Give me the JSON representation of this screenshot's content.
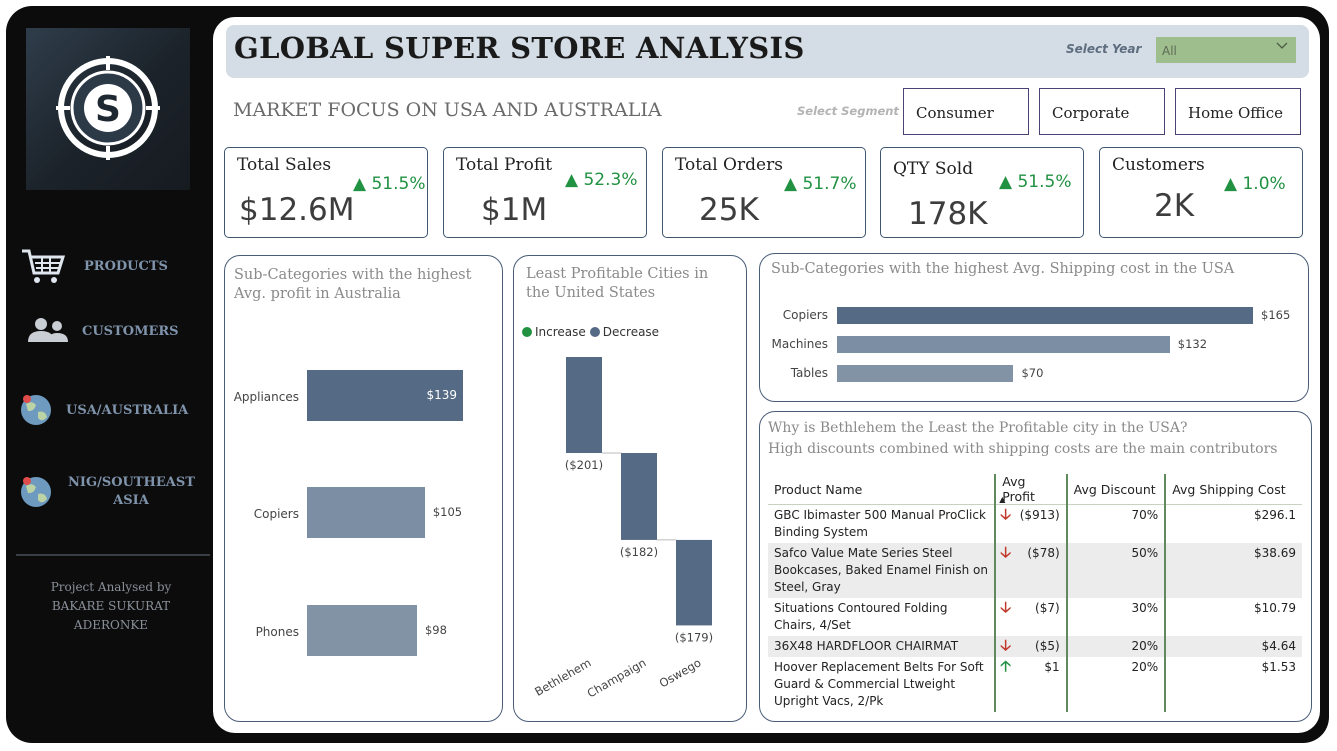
{
  "sidebar": {
    "nav": [
      {
        "label": "PRODUCTS",
        "icon": "cart-icon"
      },
      {
        "label": "CUSTOMERS",
        "icon": "people-icon"
      },
      {
        "label": "USA/AUSTRALIA",
        "icon": "globe-icon"
      },
      {
        "label": "NIG/SOUTHEAST ASIA",
        "icon": "globe-icon"
      }
    ],
    "credit": {
      "line1": "Project Analysed by",
      "line2": "BAKARE SUKURAT",
      "line3": "ADERONKE"
    }
  },
  "header": {
    "title": "GLOBAL SUPER STORE ANALYSIS",
    "year_label": "Select Year",
    "year_value": "All"
  },
  "subtitle": "MARKET FOCUS ON USA AND AUSTRALIA",
  "segment": {
    "label": "Select Segment",
    "options": [
      "Consumer",
      "Corporate",
      "Home Office"
    ]
  },
  "kpis": [
    {
      "title": "Total Sales",
      "value": "$12.6M",
      "delta": "51.5%"
    },
    {
      "title": "Total Profit",
      "value": "$1M",
      "delta": "52.3%"
    },
    {
      "title": "Total Orders",
      "value": "25K",
      "delta": "51.7%"
    },
    {
      "title": "QTY Sold",
      "value": "178K",
      "delta": "51.5%"
    },
    {
      "title": "Customers",
      "value": "2K",
      "delta": "1.0%"
    }
  ],
  "colors": {
    "positive": "#219142",
    "negative": "#c0392b",
    "bar": "#556a84",
    "bar_light": "#7b8ea3",
    "accent": "#9ebe8d"
  },
  "chart_data": [
    {
      "type": "bar",
      "orientation": "horizontal",
      "title": "Sub-Categories with the highest Avg. profit in Australia",
      "categories": [
        "Appliances",
        "Copiers",
        "Phones"
      ],
      "values": [
        139,
        105,
        98
      ],
      "value_labels": [
        "$139",
        "$105",
        "$98"
      ]
    },
    {
      "type": "waterfall",
      "title": "Least Profitable Cities in the United States",
      "legend": [
        "Increase",
        "Decrease"
      ],
      "categories": [
        "Bethlehem",
        "Champaign",
        "Oswego"
      ],
      "values": [
        -201,
        -182,
        -179
      ],
      "value_labels": [
        "($201)",
        "($182)",
        "($179)"
      ]
    },
    {
      "type": "bar",
      "orientation": "horizontal",
      "title": "Sub-Categories with the highest  Avg. Shipping cost in the USA",
      "categories": [
        "Copiers",
        "Machines",
        "Tables"
      ],
      "values": [
        165,
        132,
        70
      ],
      "value_labels": [
        "$165",
        "$132",
        "$70"
      ]
    }
  ],
  "table": {
    "title_line1": "Why is Bethlehem the Least the Profitable city in the USA?",
    "title_line2": "High discounts combined with shipping costs are the main contributors",
    "columns": [
      "Product Name",
      "Avg Profit",
      "Avg Discount",
      "Avg Shipping Cost"
    ],
    "rows": [
      {
        "name": "GBC Ibimaster 500 Manual ProClick Binding System",
        "trend": "down",
        "profit": "($913)",
        "discount": "70%",
        "shipping": "$296.1"
      },
      {
        "name": "Safco Value Mate Series Steel Bookcases, Baked Enamel Finish on Steel, Gray",
        "trend": "down",
        "profit": "($78)",
        "discount": "50%",
        "shipping": "$38.69"
      },
      {
        "name": "Situations Contoured Folding Chairs, 4/Set",
        "trend": "down",
        "profit": "($7)",
        "discount": "30%",
        "shipping": "$10.79"
      },
      {
        "name": "36X48 HARDFLOOR CHAIRMAT",
        "trend": "down",
        "profit": "($5)",
        "discount": "20%",
        "shipping": "$4.64"
      },
      {
        "name": "Hoover Replacement Belts For Soft Guard & Commercial Ltweight Upright Vacs, 2/Pk",
        "trend": "up",
        "profit": "$1",
        "discount": "20%",
        "shipping": "$1.53"
      }
    ]
  }
}
